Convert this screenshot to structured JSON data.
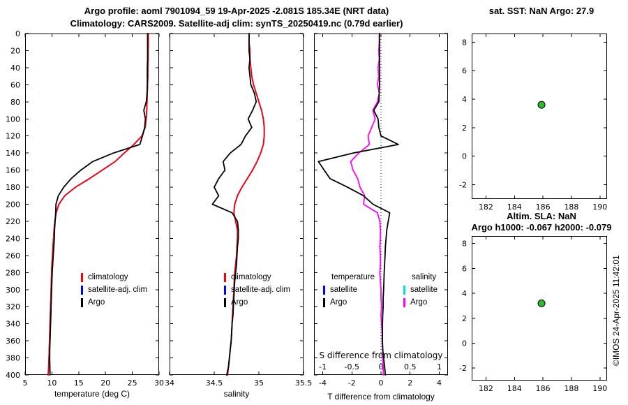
{
  "header": {
    "title1": "Argo profile: aoml 7901094_59 19-Apr-2025 -2.081S 185.34E (NRT data)",
    "title2": "Climatology: CARS2009. Satellite-adj clim: synTS_20250419.nc (0.79d earlier)"
  },
  "footer": {
    "copyright": "©IMOS 24-Apr-2025 11:42:01"
  },
  "legends": {
    "profile": [
      {
        "label": "climatology",
        "color": "#ff0000"
      },
      {
        "label": "satellite-adj. clim",
        "color": "#0000ff"
      },
      {
        "label": "Argo",
        "color": "#000000"
      }
    ],
    "diff_temperature": {
      "header": "temperature",
      "items": [
        {
          "label": "satellite",
          "color": "#0000ff"
        },
        {
          "label": "Argo",
          "color": "#000000"
        }
      ]
    },
    "diff_salinity": {
      "header": "salinity",
      "items": [
        {
          "label": "satellite",
          "color": "#00dede"
        },
        {
          "label": "Argo",
          "color": "#ff00ff"
        }
      ]
    }
  },
  "chart_data": [
    {
      "dom_id": "chart-temperature",
      "type": "line",
      "title": "",
      "xlabel": "temperature (deg C)",
      "xlim": [
        5,
        30
      ],
      "ylim": [
        0,
        400
      ],
      "y_down": true,
      "xticks": [
        5,
        10,
        15,
        20,
        25,
        30
      ],
      "yticks": [
        0,
        20,
        40,
        60,
        80,
        100,
        120,
        140,
        160,
        180,
        200,
        220,
        240,
        260,
        280,
        300,
        320,
        340,
        360,
        380,
        400
      ],
      "show_yticklabels": true,
      "depths": [
        0,
        10,
        20,
        30,
        40,
        50,
        60,
        70,
        80,
        90,
        100,
        110,
        120,
        130,
        140,
        150,
        160,
        170,
        180,
        190,
        200,
        210,
        220,
        230,
        240,
        250,
        260,
        270,
        280,
        290,
        300,
        310,
        320,
        330,
        340,
        350,
        360,
        370,
        380,
        390,
        400
      ],
      "series": [
        {
          "name": "satellite-adj. clim",
          "color": "#0000ff",
          "values": [
            28.0,
            28.0,
            27.95,
            27.95,
            27.9,
            27.9,
            27.85,
            27.8,
            27.75,
            27.7,
            27.6,
            27.4,
            26.8,
            25.3,
            23.5,
            21.8,
            19.4,
            17.0,
            14.4,
            12.4,
            11.3,
            10.8,
            10.55,
            10.4,
            10.3,
            10.2,
            10.1,
            10.0,
            9.95,
            9.9,
            9.85,
            9.8,
            9.75,
            9.7,
            9.65,
            9.6,
            9.55,
            9.5,
            9.45,
            9.4,
            9.3
          ]
        },
        {
          "name": "climatology",
          "color": "#ff0000",
          "values": [
            28.0,
            28.0,
            27.95,
            27.95,
            27.9,
            27.9,
            27.85,
            27.8,
            27.75,
            27.7,
            27.6,
            27.4,
            26.8,
            25.3,
            23.5,
            21.8,
            19.4,
            17.0,
            14.4,
            12.4,
            11.3,
            10.8,
            10.55,
            10.4,
            10.3,
            10.2,
            10.1,
            10.0,
            9.95,
            9.9,
            9.85,
            9.8,
            9.75,
            9.7,
            9.65,
            9.6,
            9.55,
            9.5,
            9.45,
            9.4,
            9.3
          ]
        },
        {
          "name": "Argo",
          "color": "#000000",
          "values": [
            27.85,
            27.85,
            27.85,
            27.85,
            27.8,
            27.8,
            27.8,
            27.75,
            27.6,
            27.15,
            27.45,
            27.3,
            26.9,
            26.4,
            21.5,
            17.6,
            15.4,
            13.6,
            12.2,
            11.2,
            10.75,
            10.7,
            10.6,
            10.5,
            10.45,
            10.35,
            10.25,
            10.15,
            10.05,
            10.0,
            9.95,
            9.9,
            9.85,
            9.8,
            9.75,
            9.7,
            9.65,
            9.6,
            9.58,
            9.62,
            9.65
          ]
        }
      ]
    },
    {
      "dom_id": "chart-salinity",
      "type": "line",
      "title": "",
      "xlabel": "salinity",
      "xlim": [
        34,
        35.5
      ],
      "ylim": [
        0,
        400
      ],
      "y_down": true,
      "xticks": [
        34,
        34.5,
        35,
        35.5
      ],
      "yticks": [
        0,
        20,
        40,
        60,
        80,
        100,
        120,
        140,
        160,
        180,
        200,
        220,
        240,
        260,
        280,
        300,
        320,
        340,
        360,
        380,
        400
      ],
      "show_yticklabels": false,
      "depths": [
        0,
        10,
        20,
        30,
        40,
        50,
        60,
        70,
        80,
        90,
        100,
        110,
        120,
        130,
        140,
        150,
        160,
        170,
        180,
        190,
        200,
        210,
        220,
        230,
        240,
        250,
        260,
        270,
        280,
        290,
        300,
        310,
        320,
        330,
        340,
        350,
        360,
        370,
        380,
        390,
        400
      ],
      "series": [
        {
          "name": "satellite-adj. clim",
          "color": "#0000ff",
          "values": [
            34.89,
            34.89,
            34.9,
            34.9,
            34.91,
            34.92,
            34.94,
            34.97,
            35.0,
            35.03,
            35.05,
            35.06,
            35.06,
            35.05,
            35.02,
            34.98,
            34.93,
            34.87,
            34.81,
            34.76,
            34.73,
            34.72,
            34.74,
            34.76,
            34.76,
            34.755,
            34.75,
            34.74,
            34.73,
            34.725,
            34.72,
            34.715,
            34.71,
            34.705,
            34.7,
            34.695,
            34.69,
            34.68,
            34.67,
            34.66,
            34.65
          ]
        },
        {
          "name": "climatology",
          "color": "#ff0000",
          "values": [
            34.89,
            34.89,
            34.9,
            34.9,
            34.91,
            34.92,
            34.94,
            34.97,
            35.0,
            35.03,
            35.05,
            35.06,
            35.06,
            35.05,
            35.02,
            34.98,
            34.93,
            34.87,
            34.81,
            34.76,
            34.73,
            34.72,
            34.74,
            34.76,
            34.76,
            34.755,
            34.75,
            34.74,
            34.73,
            34.725,
            34.72,
            34.715,
            34.71,
            34.705,
            34.7,
            34.695,
            34.69,
            34.68,
            34.67,
            34.66,
            34.65
          ]
        },
        {
          "name": "Argo",
          "color": "#000000",
          "values": [
            34.89,
            34.89,
            34.89,
            34.9,
            34.89,
            34.9,
            34.91,
            34.95,
            34.97,
            34.93,
            34.88,
            34.92,
            34.85,
            34.8,
            34.68,
            34.6,
            34.62,
            34.55,
            34.5,
            34.55,
            34.48,
            34.7,
            34.76,
            34.77,
            34.77,
            34.76,
            34.755,
            34.75,
            34.74,
            34.73,
            34.725,
            34.72,
            34.715,
            34.71,
            34.7,
            34.695,
            34.69,
            34.68,
            34.67,
            34.66,
            34.64
          ]
        }
      ]
    },
    {
      "dom_id": "chart-difference",
      "type": "line",
      "title": "",
      "xlabel": "T difference from climatology",
      "x2label": "S difference from climatology",
      "xlim": [
        -4.6,
        4.6
      ],
      "x2lim": [
        -1.15,
        1.15
      ],
      "ylim": [
        0,
        400
      ],
      "y_down": true,
      "zero_line": true,
      "xticks": [
        -4,
        -2,
        0,
        2,
        4
      ],
      "x2ticks": [
        -1,
        -0.5,
        0,
        0.5,
        1
      ],
      "yticks": [
        0,
        20,
        40,
        60,
        80,
        100,
        120,
        140,
        160,
        180,
        200,
        220,
        240,
        260,
        280,
        300,
        320,
        340,
        360,
        380,
        400
      ],
      "show_yticklabels": false,
      "depths": [
        0,
        10,
        20,
        30,
        40,
        50,
        60,
        70,
        80,
        90,
        100,
        110,
        120,
        130,
        140,
        150,
        160,
        170,
        180,
        190,
        200,
        210,
        220,
        230,
        240,
        250,
        260,
        270,
        280,
        290,
        300,
        310,
        320,
        330,
        340,
        350,
        360,
        370,
        380,
        390,
        400
      ],
      "series": [
        {
          "name": "S diff Argo",
          "color": "#ff00ff",
          "scale": "x2",
          "values": [
            -0.03,
            -0.03,
            -0.04,
            -0.03,
            -0.05,
            -0.04,
            -0.06,
            -0.03,
            -0.06,
            -0.14,
            -0.1,
            -0.16,
            -0.22,
            -0.2,
            -0.38,
            -0.52,
            -0.48,
            -0.4,
            -0.36,
            -0.28,
            -0.3,
            -0.06,
            -0.02,
            -0.01,
            -0.01,
            -0.02,
            -0.01,
            -0.01,
            -0.02,
            -0.01,
            0.0,
            0.0,
            0.01,
            0.0,
            0.01,
            0.02,
            0.02,
            0.03,
            0.03,
            0.04,
            0.04
          ]
        },
        {
          "name": "T diff Argo",
          "color": "#000000",
          "values": [
            -0.1,
            -0.1,
            -0.1,
            -0.1,
            -0.1,
            -0.1,
            -0.1,
            -0.12,
            -0.15,
            -0.5,
            -0.2,
            -0.15,
            0.0,
            1.2,
            -1.9,
            -4.3,
            -3.9,
            -3.5,
            -2.3,
            -1.2,
            -0.55,
            0.6,
            0.5,
            0.4,
            0.35,
            0.3,
            0.28,
            0.25,
            0.22,
            0.2,
            0.18,
            0.15,
            0.15,
            0.12,
            0.1,
            0.1,
            0.1,
            0.12,
            0.18,
            0.25,
            0.3
          ]
        }
      ]
    },
    {
      "dom_id": "chart-sst",
      "type": "scatter",
      "title": "sat. SST: NaN Argo: 27.9",
      "xlim": [
        181,
        190.5
      ],
      "ylim": [
        -3,
        8.6
      ],
      "y_down": false,
      "xticks": [
        182,
        184,
        186,
        188,
        190
      ],
      "yticks": [
        -2,
        0,
        2,
        4,
        6,
        8
      ],
      "show_yticklabels": true,
      "points": [
        {
          "x": 185.9,
          "y": 3.6,
          "color": "#2eb82e"
        }
      ]
    },
    {
      "dom_id": "chart-sla",
      "type": "scatter",
      "title": "Altim. SLA: NaN",
      "subtitle": "Argo h1000: -0.067 h2000: -0.079",
      "xlim": [
        181,
        190.5
      ],
      "ylim": [
        -3,
        8.6
      ],
      "y_down": false,
      "xticks": [
        182,
        184,
        186,
        188,
        190
      ],
      "yticks": [
        -2,
        0,
        2,
        4,
        6,
        8
      ],
      "show_yticklabels": true,
      "points": [
        {
          "x": 185.9,
          "y": 3.2,
          "color": "#2eb82e"
        }
      ]
    }
  ]
}
